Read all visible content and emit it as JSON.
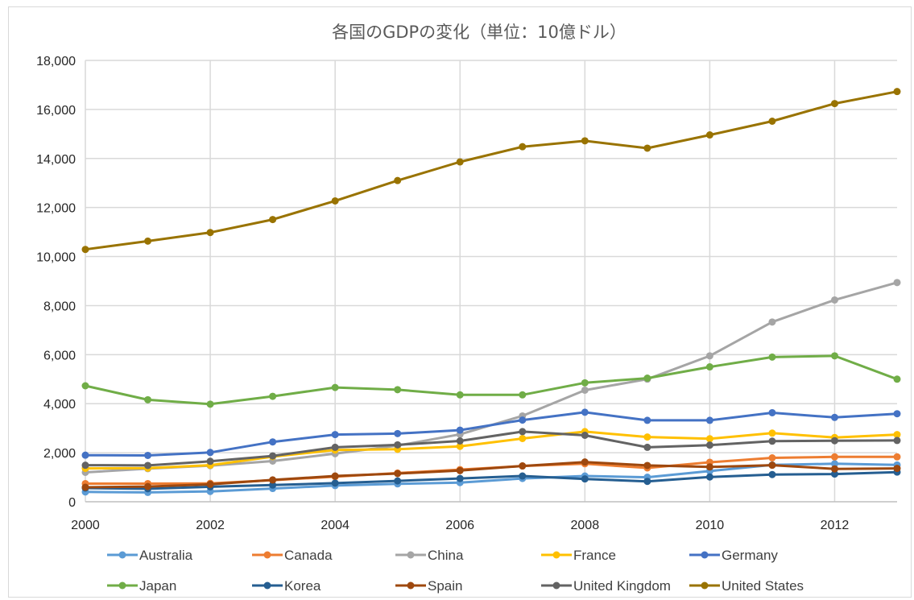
{
  "chart_data": {
    "type": "line",
    "title": "各国のGDPの変化（単位：10億ドル）",
    "x": [
      2000,
      2001,
      2002,
      2003,
      2004,
      2005,
      2006,
      2007,
      2008,
      2009,
      2010,
      2011,
      2012,
      2013
    ],
    "x_tick_labels": [
      "2000",
      "2002",
      "2004",
      "2006",
      "2008",
      "2010",
      "2012"
    ],
    "x_tick_values": [
      2000,
      2002,
      2004,
      2006,
      2008,
      2010,
      2012
    ],
    "xlim": [
      2000,
      2013
    ],
    "ylim": [
      0,
      18000
    ],
    "y_ticks": [
      0,
      2000,
      4000,
      6000,
      8000,
      10000,
      12000,
      14000,
      16000,
      18000
    ],
    "y_tick_labels": [
      "0",
      "2,000",
      "4,000",
      "6,000",
      "8,000",
      "10,000",
      "12,000",
      "14,000",
      "16,000",
      "18,000"
    ],
    "grid": true,
    "legend_position": "bottom",
    "series": [
      {
        "name": "Australia",
        "color": "#5b9bd5",
        "values": [
          400,
          380,
          420,
          540,
          660,
          730,
          780,
          950,
          1050,
          1000,
          1250,
          1500,
          1550,
          1500
        ]
      },
      {
        "name": "Canada",
        "color": "#ed7d31",
        "values": [
          740,
          740,
          750,
          880,
          1020,
          1170,
          1310,
          1460,
          1550,
          1380,
          1610,
          1790,
          1830,
          1830
        ]
      },
      {
        "name": "China",
        "color": "#a5a5a5",
        "values": [
          1200,
          1350,
          1470,
          1660,
          1960,
          2290,
          2750,
          3500,
          4550,
          5000,
          5950,
          7330,
          8230,
          8940
        ]
      },
      {
        "name": "France",
        "color": "#ffc000",
        "values": [
          1360,
          1370,
          1490,
          1840,
          2110,
          2140,
          2260,
          2580,
          2860,
          2640,
          2570,
          2800,
          2620,
          2740
        ]
      },
      {
        "name": "Germany",
        "color": "#4472c4",
        "values": [
          1900,
          1890,
          2010,
          2440,
          2740,
          2780,
          2920,
          3330,
          3650,
          3320,
          3320,
          3630,
          3440,
          3590
        ]
      },
      {
        "name": "Japan",
        "color": "#70ad47",
        "values": [
          4730,
          4160,
          3980,
          4300,
          4660,
          4570,
          4360,
          4360,
          4850,
          5040,
          5500,
          5900,
          5950,
          5000
        ]
      },
      {
        "name": "Korea",
        "color": "#255e91",
        "values": [
          560,
          530,
          610,
          680,
          760,
          850,
          950,
          1050,
          930,
          830,
          1010,
          1110,
          1130,
          1210
        ]
      },
      {
        "name": "Spain",
        "color": "#9e480e",
        "values": [
          590,
          620,
          710,
          890,
          1050,
          1150,
          1270,
          1460,
          1620,
          1480,
          1420,
          1490,
          1340,
          1360
        ]
      },
      {
        "name": "United Kingdom",
        "color": "#636363",
        "values": [
          1490,
          1480,
          1650,
          1870,
          2220,
          2320,
          2480,
          2860,
          2710,
          2220,
          2310,
          2470,
          2490,
          2500
        ]
      },
      {
        "name": "United States",
        "color": "#997300",
        "values": [
          10290,
          10630,
          10980,
          11510,
          12270,
          13100,
          13860,
          14480,
          14720,
          14420,
          14960,
          15520,
          16240,
          16730
        ]
      }
    ]
  }
}
